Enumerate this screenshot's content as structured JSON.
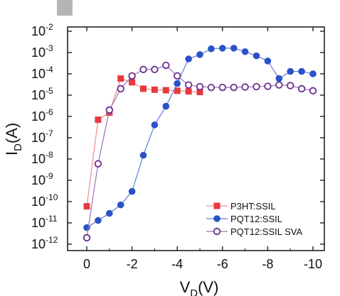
{
  "chart_data": {
    "type": "scatter",
    "xlabel": "V_D(V)",
    "ylabel": "I_D(A)",
    "x_display_range": [
      0,
      -10
    ],
    "x_ticks": [
      0,
      -2,
      -4,
      -6,
      -8,
      -10
    ],
    "x_tick_labels": [
      "0",
      "-2",
      "-4",
      "-6",
      "-8",
      "-10"
    ],
    "y_scale": "log",
    "y_range": [
      1e-12,
      0.01
    ],
    "y_ticks": [
      {
        "exp": "-2",
        "value": 0.01
      },
      {
        "exp": "-3",
        "value": 0.001
      },
      {
        "exp": "-4",
        "value": 0.0001
      },
      {
        "exp": "-5",
        "value": 1e-05
      },
      {
        "exp": "-6",
        "value": 1e-06
      },
      {
        "exp": "-7",
        "value": 1e-07
      },
      {
        "exp": "-8",
        "value": 1e-08
      },
      {
        "exp": "-9",
        "value": 1e-09
      },
      {
        "exp": "-10",
        "value": 1e-10
      },
      {
        "exp": "-11",
        "value": 1e-11
      },
      {
        "exp": "-12",
        "value": 1e-12
      }
    ],
    "grid": false,
    "legend_position": "bottom-right",
    "series": [
      {
        "name": "P3HT:SSIL",
        "color": "#e8393f",
        "line_color": "#f08a8d",
        "marker": "square-filled",
        "points": [
          [
            0,
            6e-11
          ],
          [
            -0.5,
            7e-07
          ],
          [
            -1,
            1.5e-06
          ],
          [
            -1.5,
            6e-05
          ],
          [
            -2,
            4e-05
          ],
          [
            -2.5,
            2e-05
          ],
          [
            -3,
            1.8e-05
          ],
          [
            -3.5,
            1.7e-05
          ],
          [
            -4,
            1.6e-05
          ],
          [
            -4.5,
            1.5e-05
          ],
          [
            -5,
            1.4e-05
          ]
        ]
      },
      {
        "name": "PQT12:SSIL",
        "color": "#2b52c9",
        "line_color": "#5f7fd9",
        "marker": "circle-filled",
        "points": [
          [
            0,
            6e-12
          ],
          [
            -0.5,
            1.3e-11
          ],
          [
            -1,
            2.8e-11
          ],
          [
            -1.5,
            7e-11
          ],
          [
            -2,
            3e-10
          ],
          [
            -2.5,
            1.5e-08
          ],
          [
            -3,
            4e-07
          ],
          [
            -3.5,
            3e-06
          ],
          [
            -4,
            3.5e-05
          ],
          [
            -4.5,
            0.0005
          ],
          [
            -5,
            0.0008
          ],
          [
            -5.5,
            0.0015
          ],
          [
            -6,
            0.0016
          ],
          [
            -6.5,
            0.0016
          ],
          [
            -7,
            0.0011
          ],
          [
            -7.5,
            0.0007
          ],
          [
            -8,
            0.0004
          ],
          [
            -8.5,
            6e-05
          ],
          [
            -9,
            0.00013
          ],
          [
            -9.5,
            0.00013
          ],
          [
            -10,
            0.0001
          ]
        ]
      },
      {
        "name": "PQT12:SSIL SVA",
        "color": "#6b2d8c",
        "line_color": "#9a73c0",
        "marker": "circle-open",
        "points": [
          [
            0,
            2e-12
          ],
          [
            -0.5,
            6e-09
          ],
          [
            -1,
            2e-06
          ],
          [
            -1.5,
            2e-05
          ],
          [
            -2,
            8e-05
          ],
          [
            -2.5,
            0.00016
          ],
          [
            -3,
            0.00016
          ],
          [
            -3.5,
            0.00025
          ],
          [
            -4,
            8e-05
          ],
          [
            -4.5,
            3e-05
          ],
          [
            -5,
            2.5e-05
          ],
          [
            -5.5,
            2.3e-05
          ],
          [
            -6,
            2.3e-05
          ],
          [
            -6.5,
            2.3e-05
          ],
          [
            -7,
            2.4e-05
          ],
          [
            -7.5,
            2.5e-05
          ],
          [
            -8,
            2.6e-05
          ],
          [
            -8.5,
            3e-05
          ],
          [
            -9,
            2.8e-05
          ],
          [
            -9.5,
            2e-05
          ],
          [
            -10,
            1.6e-05
          ]
        ]
      }
    ]
  }
}
